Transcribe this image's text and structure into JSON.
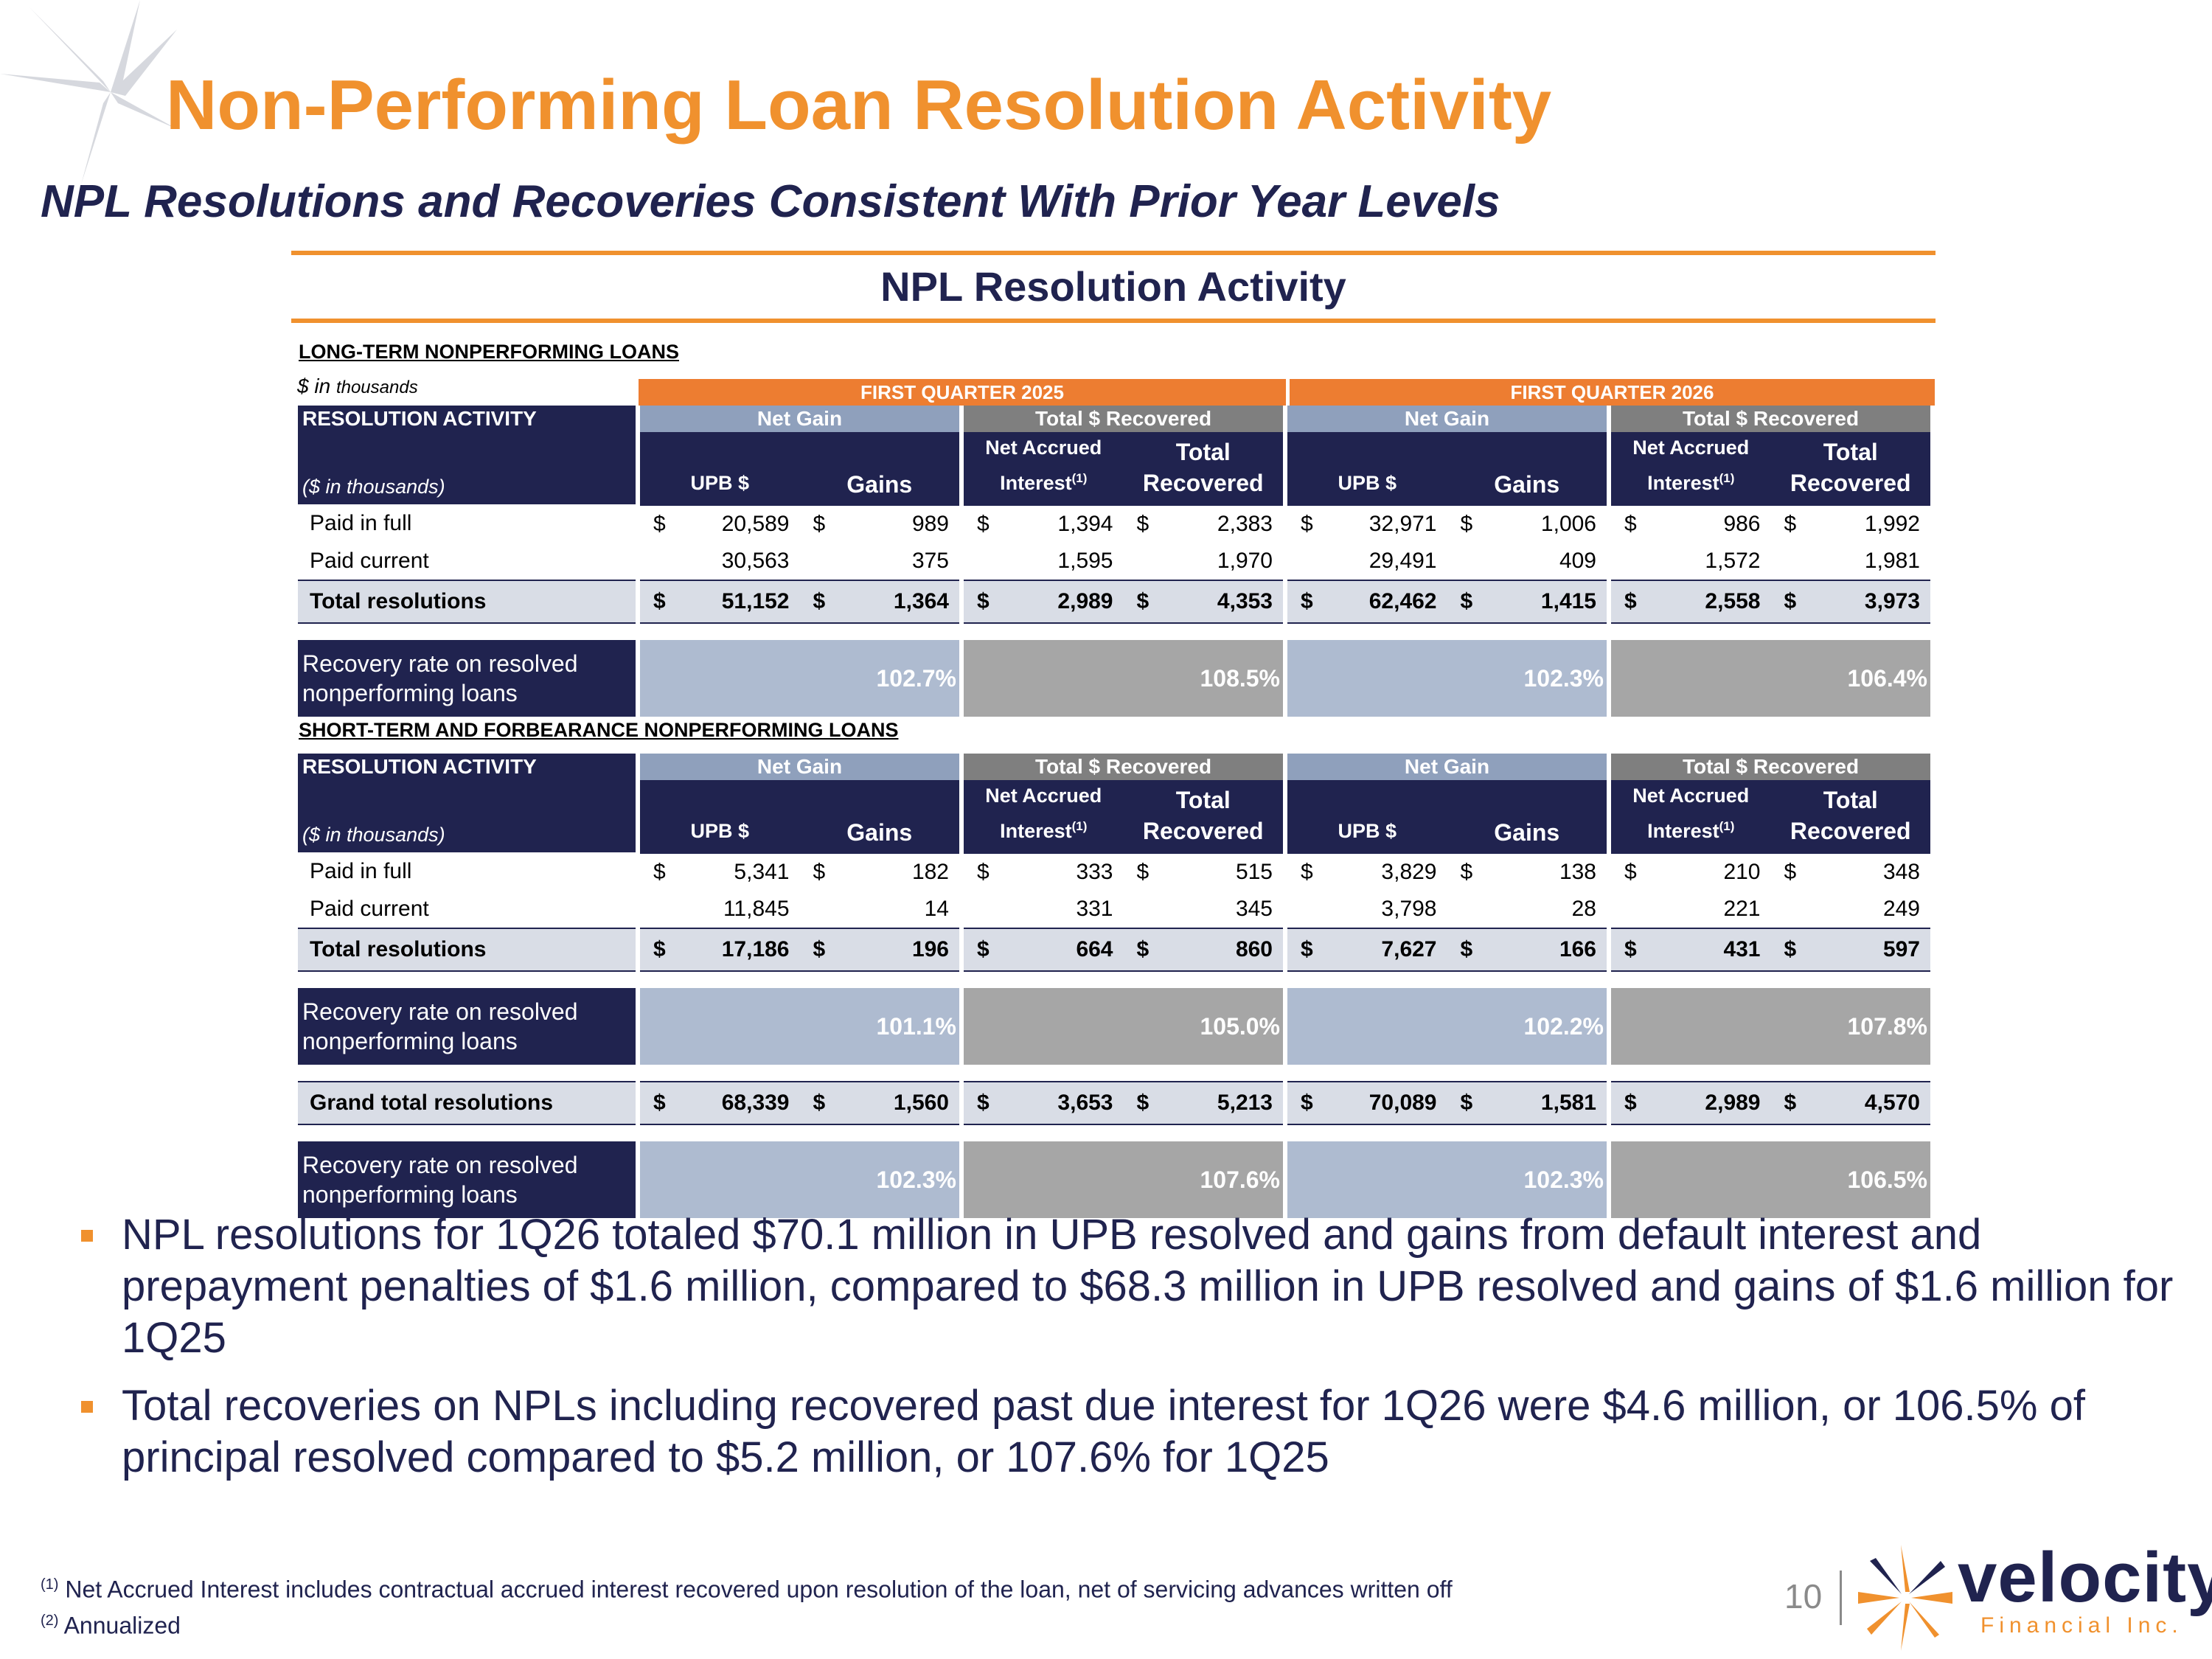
{
  "header": {
    "title": "Non-Performing Loan Resolution Activity",
    "subtitle": "NPL Resolutions and Recoveries Consistent With Prior Year Levels",
    "panel_title": "NPL Resolution Activity"
  },
  "table": {
    "long_term_label": "LONG-TERM NONPERFORMING LOANS",
    "units_note_prefix": "$ in",
    "units_note_suffix": "thousands",
    "quarter_1": "FIRST QUARTER 2025",
    "quarter_2": "FIRST QUARTER 2026",
    "resolution_activity": "RESOLUTION ACTIVITY",
    "net_gain": "Net Gain",
    "total_recovered_group": "Total $ Recovered",
    "in_thousands": "($ in thousands)",
    "col_upb": "UPB $",
    "col_gains": "Gains",
    "col_nai_line1": "Net Accrued",
    "col_nai_line2": "Interest",
    "col_nai_sup": "(1)",
    "col_tr_line1": "Total",
    "col_tr_line2": "Recovered",
    "currency": "$",
    "short_term_label": "SHORT-TERM AND FORBEARANCE NONPERFORMING LOANS",
    "recovery_rate_label": "Recovery rate on resolved nonperforming loans",
    "long_term": {
      "rows": [
        {
          "label": "Paid in full",
          "v": [
            "20,589",
            "989",
            "1,394",
            "2,383",
            "32,971",
            "1,006",
            "986",
            "1,992"
          ]
        },
        {
          "label": "Paid current",
          "v": [
            "30,563",
            "375",
            "1,595",
            "1,970",
            "29,491",
            "409",
            "1,572",
            "1,981"
          ]
        }
      ],
      "total": {
        "label": "Total resolutions",
        "v": [
          "51,152",
          "1,364",
          "2,989",
          "4,353",
          "62,462",
          "1,415",
          "2,558",
          "3,973"
        ]
      },
      "recovery": [
        "102.7%",
        "108.5%",
        "102.3%",
        "106.4%"
      ]
    },
    "short_term": {
      "rows": [
        {
          "label": "Paid in full",
          "v": [
            "5,341",
            "182",
            "333",
            "515",
            "3,829",
            "138",
            "210",
            "348"
          ]
        },
        {
          "label": "Paid current",
          "v": [
            "11,845",
            "14",
            "331",
            "345",
            "3,798",
            "28",
            "221",
            "249"
          ]
        }
      ],
      "total": {
        "label": "Total resolutions",
        "v": [
          "17,186",
          "196",
          "664",
          "860",
          "7,627",
          "166",
          "431",
          "597"
        ]
      },
      "recovery": [
        "101.1%",
        "105.0%",
        "102.2%",
        "107.8%"
      ]
    },
    "grand": {
      "label": "Grand total resolutions",
      "v": [
        "68,339",
        "1,560",
        "3,653",
        "5,213",
        "70,089",
        "1,581",
        "2,989",
        "4,570"
      ],
      "recovery": [
        "102.3%",
        "107.6%",
        "102.3%",
        "106.5%"
      ]
    }
  },
  "bullets": [
    "NPL resolutions for 1Q26 totaled $70.1 million in UPB resolved and gains from default interest and prepayment penalties of $1.6 million, compared to $68.3 million in UPB resolved and gains of $1.6 million for 1Q25",
    "Total recoveries on NPLs including recovered past due interest for 1Q26 were $4.6 million, or 106.5% of principal resolved compared to $5.2 million, or 107.6% for 1Q25"
  ],
  "footnotes": {
    "fn1_mark": "(1)",
    "fn1_text": "Net Accrued Interest includes contractual accrued interest recovered upon resolution of the loan, net of servicing advances written off",
    "fn2_mark": "(2)",
    "fn2_text": "Annualized"
  },
  "page_number": "10",
  "logo": {
    "word": "velocity",
    "sub": "Financial Inc."
  },
  "colors": {
    "orange": "#f0912e",
    "navy": "#20234f",
    "quarter_bar": "#ed7d31",
    "net_gain_header": "#8fa0bc",
    "recovered_header": "#7f7f7f"
  }
}
